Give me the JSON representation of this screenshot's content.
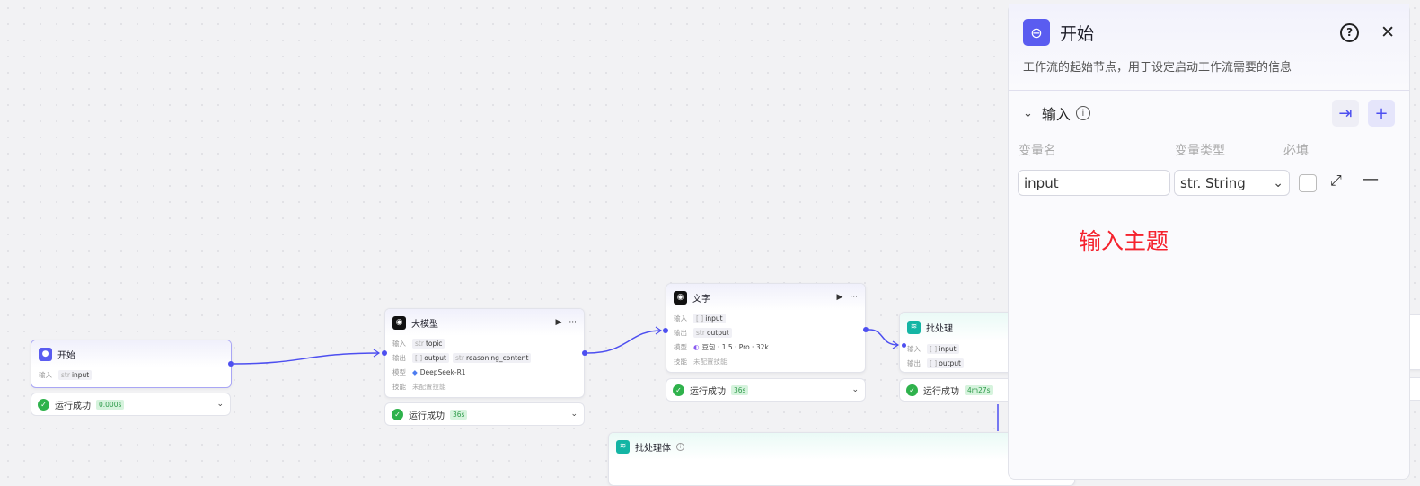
{
  "nodes": {
    "start": {
      "title": "开始",
      "in_label": "输入",
      "input": "input",
      "input_type": "str",
      "status": "运行成功",
      "duration": "0.000s"
    },
    "llm": {
      "title": "大模型",
      "in_label": "输入",
      "out_label": "输出",
      "model_label": "模型",
      "skill_label": "技能",
      "input": "topic",
      "input_type": "str",
      "output1": "output",
      "output1_type": "[ ]",
      "output2": "reasoning_content",
      "output2_type": "str",
      "model": "DeepSeek-R1",
      "skill": "未配置技能",
      "status": "运行成功",
      "duration": "36s"
    },
    "text": {
      "title": "文字",
      "in_label": "输入",
      "out_label": "输出",
      "model_label": "模型",
      "skill_label": "技能",
      "input": "input",
      "input_type": "[ ]",
      "output": "output",
      "output_type": "str",
      "model": "豆包 · 1.5 · Pro · 32k",
      "skill": "未配置技能",
      "status": "运行成功",
      "duration": "36s"
    },
    "batch": {
      "title": "批处理",
      "in_label": "输入",
      "out_label": "输出",
      "input": "input",
      "input_type": "[ ]",
      "output": "output",
      "output_type": "[ ]",
      "status": "运行成功",
      "duration": "4m27s"
    },
    "batch_body": {
      "title": "批处理体"
    }
  },
  "panel": {
    "title": "开始",
    "description": "工作流的起始节点，用于设定启动工作流需要的信息",
    "section": "输入",
    "col_name": "变量名",
    "col_type": "变量类型",
    "col_required": "必填",
    "var_name": "input",
    "var_type": "str. String",
    "required": false,
    "annotation": "输入主题"
  },
  "colors": {
    "accent": "#4d4ff0",
    "success": "#2fb24c",
    "annotation": "#f5222d"
  }
}
